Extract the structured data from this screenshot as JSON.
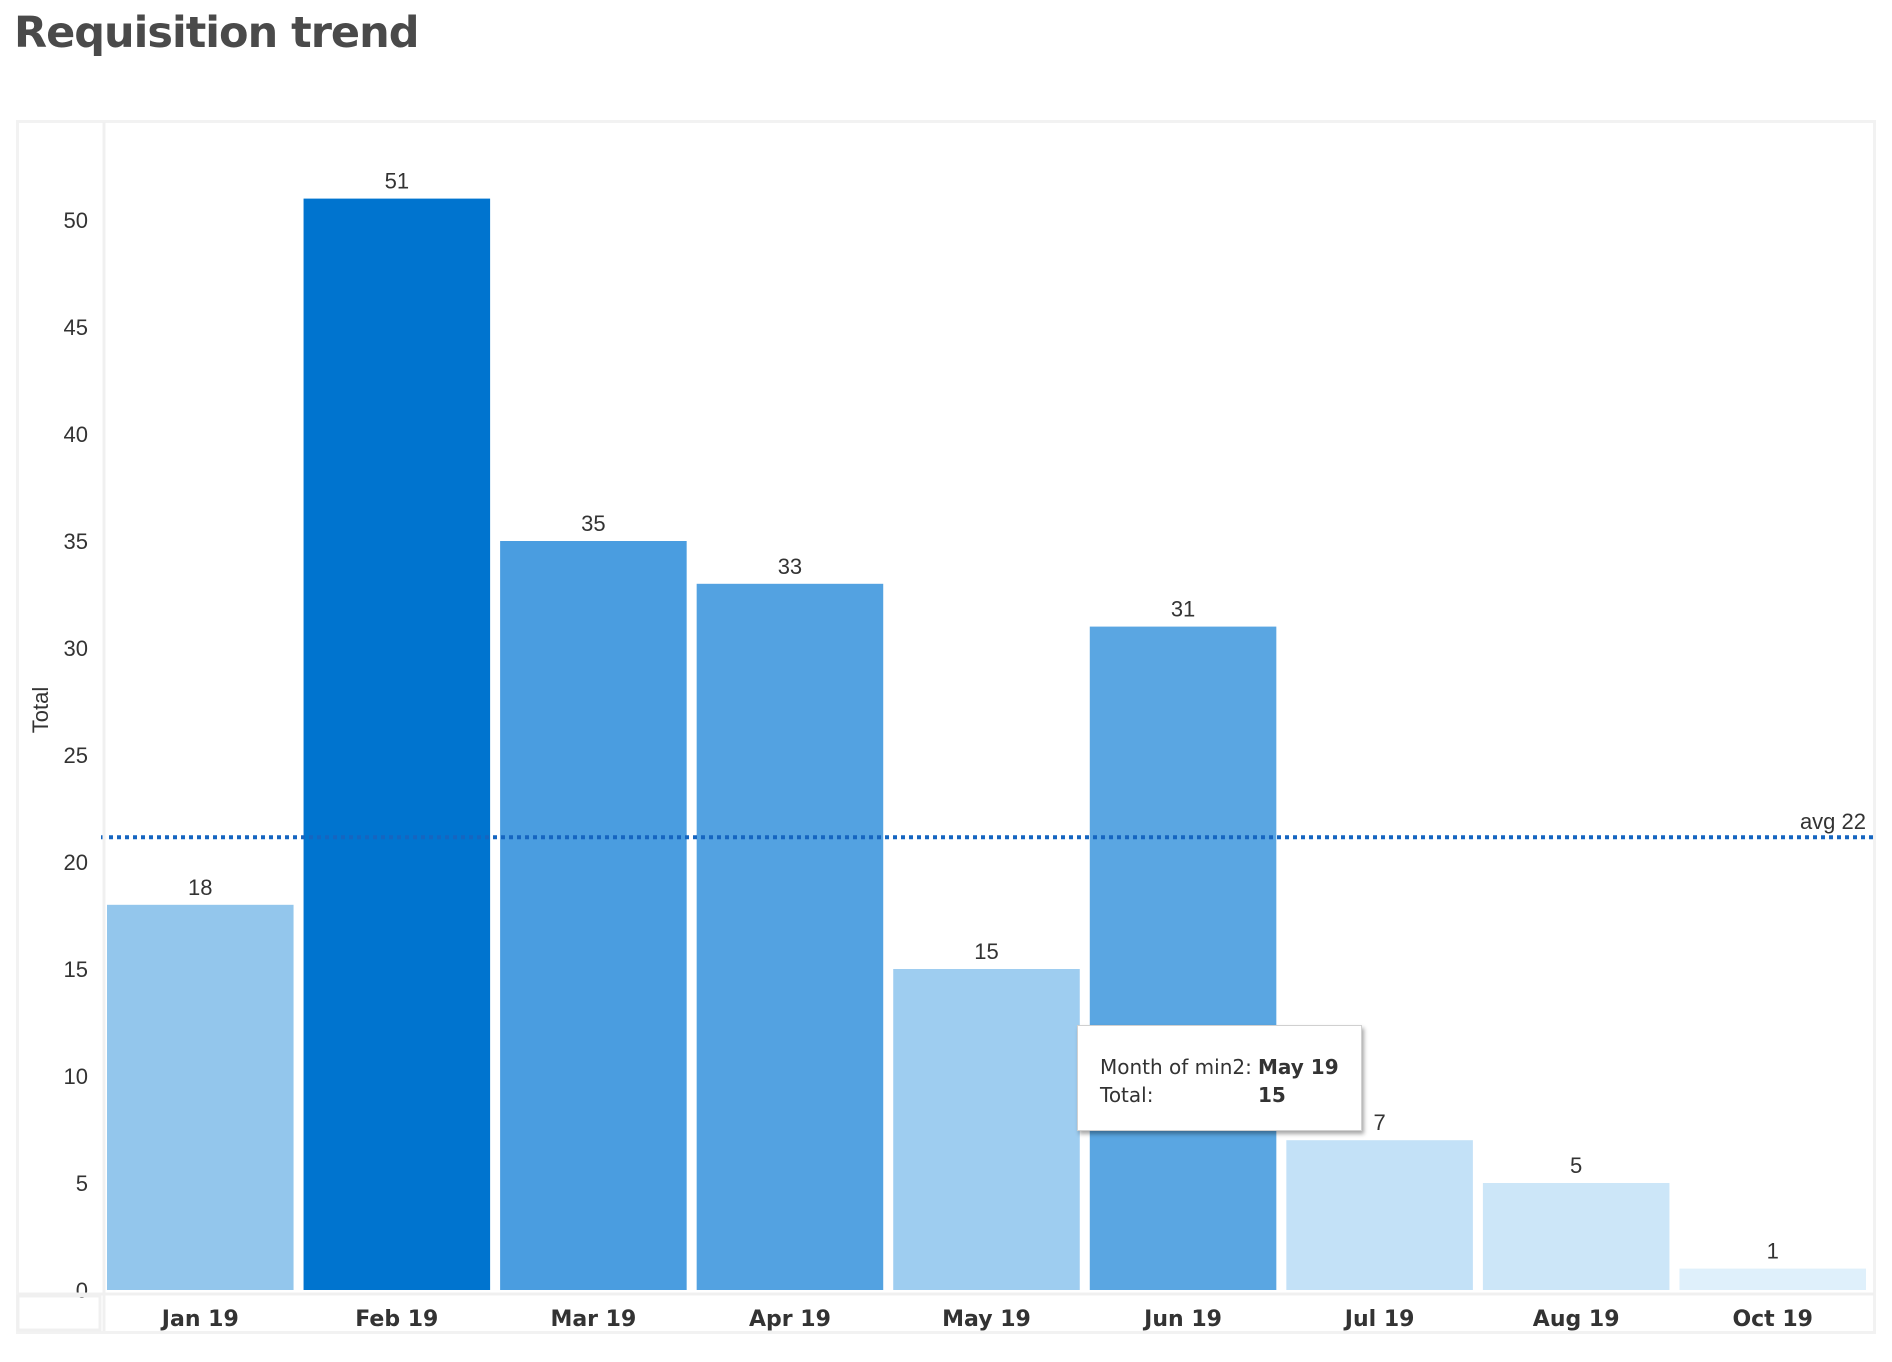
{
  "page": {
    "title": "Requisition trend"
  },
  "chart_data": {
    "type": "bar",
    "title": "Requisition trend",
    "xlabel": "",
    "ylabel": "Total",
    "ylim": [
      0,
      52
    ],
    "yticks": [
      0,
      5,
      10,
      15,
      20,
      25,
      30,
      35,
      40,
      45,
      50
    ],
    "categories": [
      "Jan 19",
      "Feb 19",
      "Mar 19",
      "Apr 19",
      "May 19",
      "Jun 19",
      "Jul 19",
      "Aug 19",
      "Oct 19"
    ],
    "values": [
      18,
      51,
      35,
      33,
      15,
      31,
      7,
      5,
      1
    ],
    "data_labels": [
      "18",
      "51",
      "35",
      "33",
      "15",
      "31",
      "7",
      "5",
      "1"
    ],
    "bar_colors": [
      "#93c6ec",
      "#0074cf",
      "#4a9de0",
      "#53a2e1",
      "#9ecdf0",
      "#5aa6e2",
      "#c3e1f7",
      "#cce6f8",
      "#dff0fb"
    ],
    "reference_line": {
      "label": "avg 22",
      "value": 22,
      "color": "#1565c0",
      "style": "dotted"
    },
    "grid": false
  },
  "tooltip": {
    "month_label": "Month of min2:",
    "month_value": "May 19",
    "total_label": "Total:",
    "total_value": "15"
  }
}
